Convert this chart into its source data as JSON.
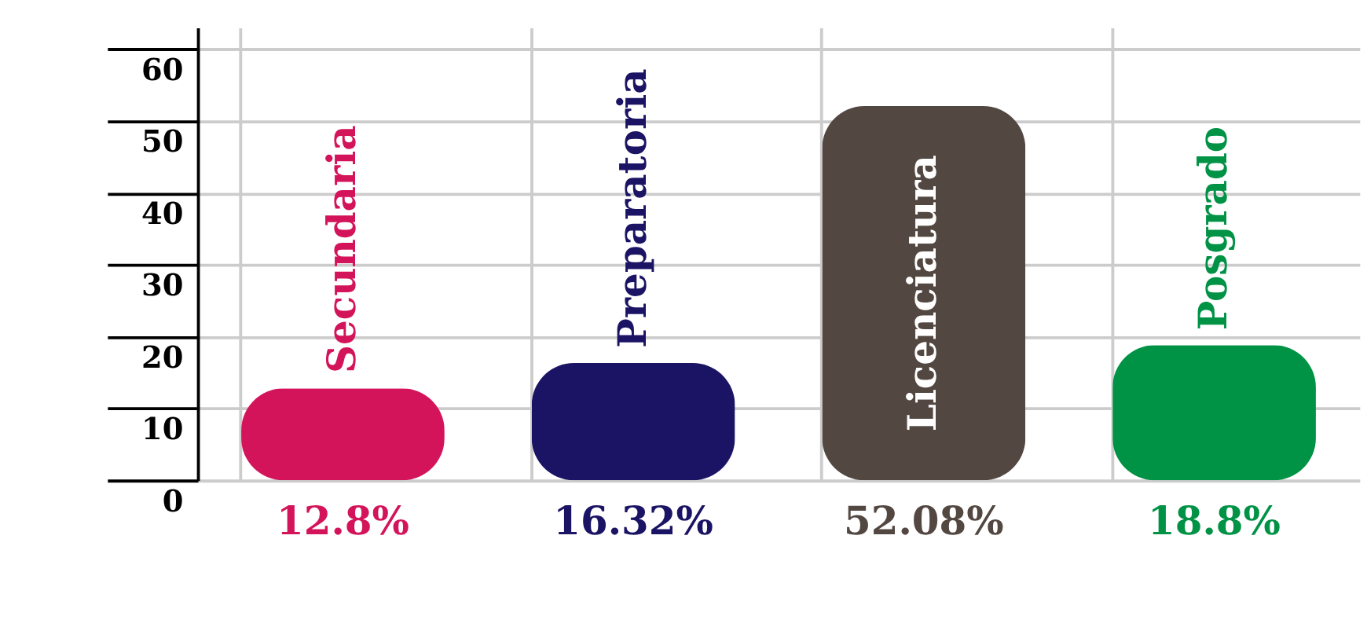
{
  "chart_data": {
    "type": "bar",
    "categories": [
      "Secundaria",
      "Preparatoria",
      "Licenciatura",
      "Posgrado"
    ],
    "values": [
      12.8,
      16.32,
      52.08,
      18.8
    ],
    "colors": [
      "#d4145a",
      "#1b1464",
      "#534741",
      "#009245"
    ],
    "value_labels": [
      "12.8%",
      "16.32%",
      "52.08%",
      "18.8%"
    ],
    "ylim": [
      0,
      63
    ],
    "yticks": [
      0,
      10,
      20,
      30,
      40,
      50,
      60
    ],
    "grid": true
  }
}
